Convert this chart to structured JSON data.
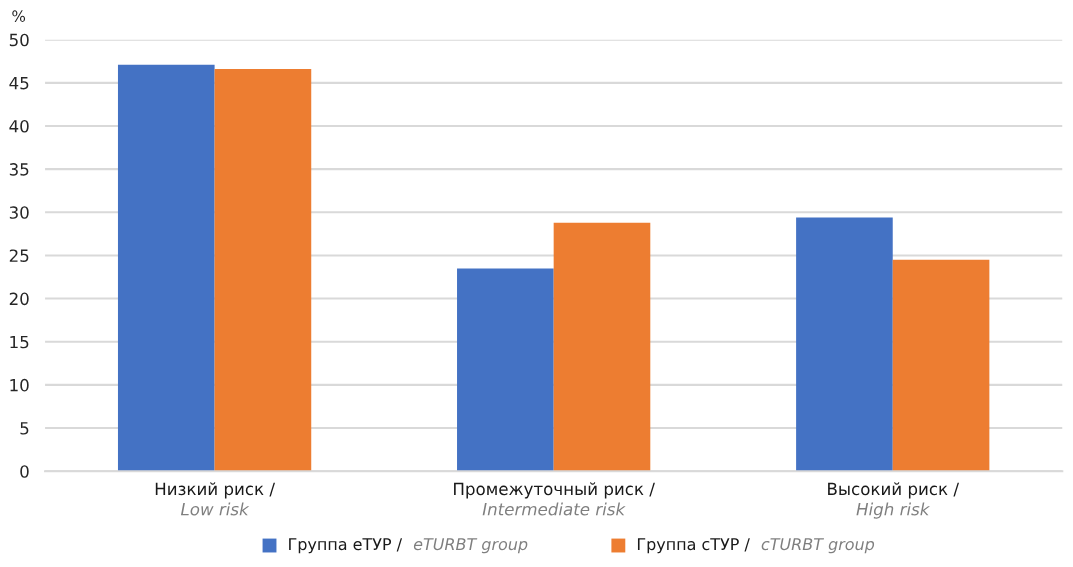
{
  "chart_data": {
    "type": "bar",
    "ylabel": "%",
    "categories": [
      "Низкий риск / Low risk",
      "Промежуточный риск / Intermediate risk",
      "Высокий риск / High risk"
    ],
    "series": [
      {
        "name": "Группа еТУР / eTURBT group",
        "color": "#4472c4",
        "values": [
          47.1,
          23.5,
          29.4
        ]
      },
      {
        "name": "Группа сТУР / cTURBT group",
        "color": "#ed7d31",
        "values": [
          46.6,
          28.8,
          24.5
        ]
      }
    ],
    "ylim": [
      0,
      50
    ],
    "yticks": [
      0,
      5,
      10,
      15,
      20,
      25,
      30,
      35,
      40,
      45,
      50
    ],
    "grid": "y",
    "legend": "bottom"
  }
}
